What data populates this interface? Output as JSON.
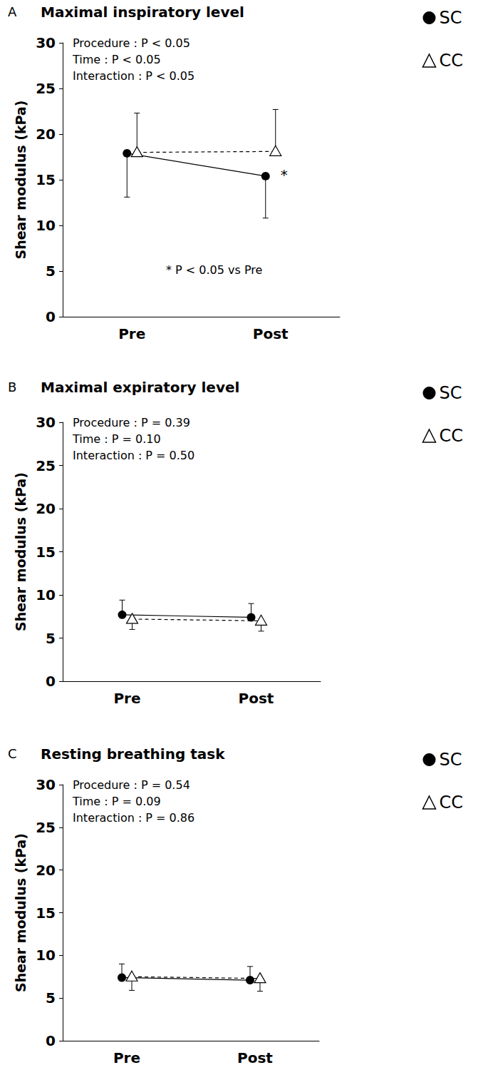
{
  "chart_data": [
    {
      "type": "line",
      "panel": "A",
      "title": "Maximal inspiratory level",
      "categories": [
        "Pre",
        "Post"
      ],
      "series": [
        {
          "name": "SC",
          "color": "#000000",
          "marker": "circle",
          "line_style": "solid",
          "values": [
            17.9,
            15.4
          ],
          "error_minus": [
            4.8,
            4.6
          ]
        },
        {
          "name": "CC",
          "color": "#000000",
          "marker": "triangle",
          "line_style": "dashed",
          "values": [
            18.0,
            18.1
          ],
          "error_plus": [
            4.3,
            4.6
          ]
        }
      ],
      "ylabel": "Shear modulus (kPa)",
      "ylim": [
        0,
        30
      ],
      "yticks": [
        0,
        5,
        10,
        15,
        20,
        25,
        30
      ],
      "grid": false,
      "legend": "top right",
      "stats": [
        "Procedure : P < 0.05",
        "Time : P < 0.05",
        "Interaction : P < 0.05"
      ],
      "annotations": [
        {
          "text": "*",
          "series": "SC",
          "category": "Post"
        }
      ],
      "footnote": "* P < 0.05 vs Pre"
    },
    {
      "type": "line",
      "panel": "B",
      "title": "Maximal expiratory level",
      "categories": [
        "Pre",
        "Post"
      ],
      "series": [
        {
          "name": "SC",
          "color": "#000000",
          "marker": "circle",
          "line_style": "solid",
          "values": [
            7.7,
            7.4
          ],
          "error_plus": [
            1.7,
            1.6
          ]
        },
        {
          "name": "CC",
          "color": "#000000",
          "marker": "triangle",
          "line_style": "dashed",
          "values": [
            7.2,
            7.0
          ],
          "error_minus": [
            1.2,
            1.2
          ]
        }
      ],
      "ylabel": "Shear modulus (kPa)",
      "ylim": [
        0,
        30
      ],
      "yticks": [
        0,
        5,
        10,
        15,
        20,
        25,
        30
      ],
      "grid": false,
      "legend": "top right",
      "stats": [
        "Procedure : P = 0.39",
        "Time : P = 0.10",
        "Interaction : P = 0.50"
      ]
    },
    {
      "type": "line",
      "panel": "C",
      "title": "Resting breathing task",
      "categories": [
        "Pre",
        "Post"
      ],
      "series": [
        {
          "name": "SC",
          "color": "#000000",
          "marker": "circle",
          "line_style": "solid",
          "values": [
            7.4,
            7.1
          ],
          "error_plus": [
            1.6,
            1.6
          ]
        },
        {
          "name": "CC",
          "color": "#000000",
          "marker": "triangle",
          "line_style": "dashed",
          "values": [
            7.5,
            7.3
          ],
          "error_minus": [
            1.6,
            1.5
          ]
        }
      ],
      "ylabel": "Shear modulus (kPa)",
      "ylim": [
        0,
        30
      ],
      "yticks": [
        0,
        5,
        10,
        15,
        20,
        25,
        30
      ],
      "grid": false,
      "legend": "top right",
      "stats": [
        "Procedure : P = 0.54",
        "Time : P = 0.09",
        "Interaction : P = 0.86"
      ]
    }
  ]
}
